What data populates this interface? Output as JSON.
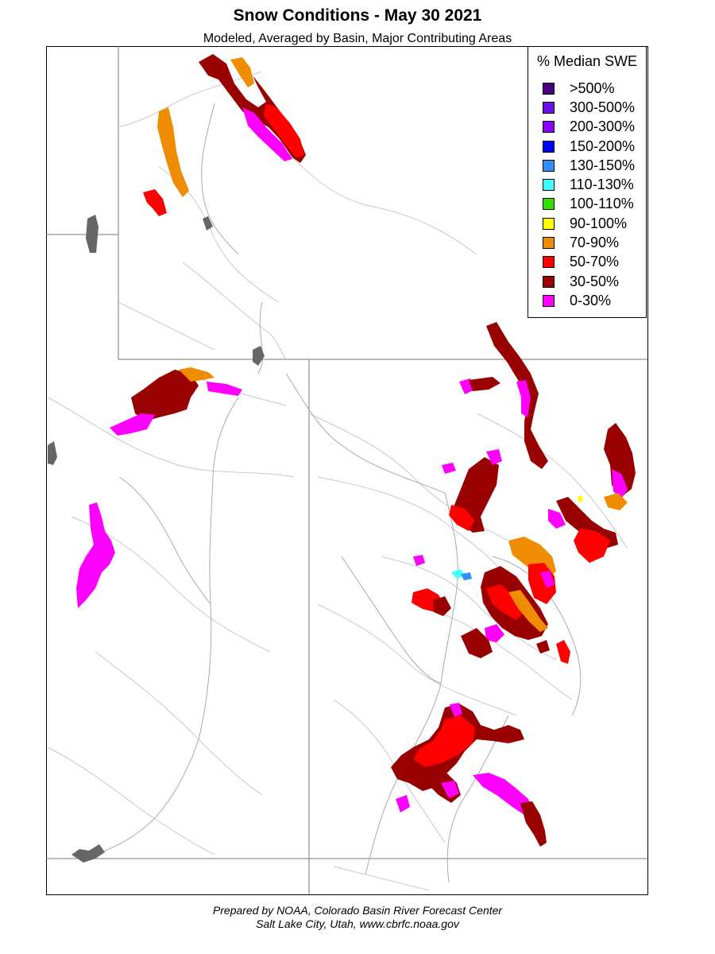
{
  "title": "Snow Conditions - May 30 2021",
  "subtitle": "Modeled, Averaged by Basin, Major Contributing Areas",
  "legend": {
    "title": "% Median SWE",
    "items": [
      {
        "label": ">500%",
        "color": "#4b0082"
      },
      {
        "label": "300-500%",
        "color": "#6a0fe6"
      },
      {
        "label": "200-300%",
        "color": "#8b00ff"
      },
      {
        "label": "150-200%",
        "color": "#0000ff"
      },
      {
        "label": "130-150%",
        "color": "#2f8fff"
      },
      {
        "label": "110-130%",
        "color": "#40ffff"
      },
      {
        "label": "100-110%",
        "color": "#33dd00"
      },
      {
        "label": "90-100%",
        "color": "#ffff00"
      },
      {
        "label": "70-90%",
        "color": "#f08c00"
      },
      {
        "label": "50-70%",
        "color": "#ff0000"
      },
      {
        "label": "30-50%",
        "color": "#990000"
      },
      {
        "label": "0-30%",
        "color": "#ff00ff"
      }
    ]
  },
  "footer": {
    "line1": "Prepared by NOAA, Colorado Basin River Forecast Center",
    "line2": "Salt Lake City, Utah, www.cbrfc.noaa.gov"
  }
}
